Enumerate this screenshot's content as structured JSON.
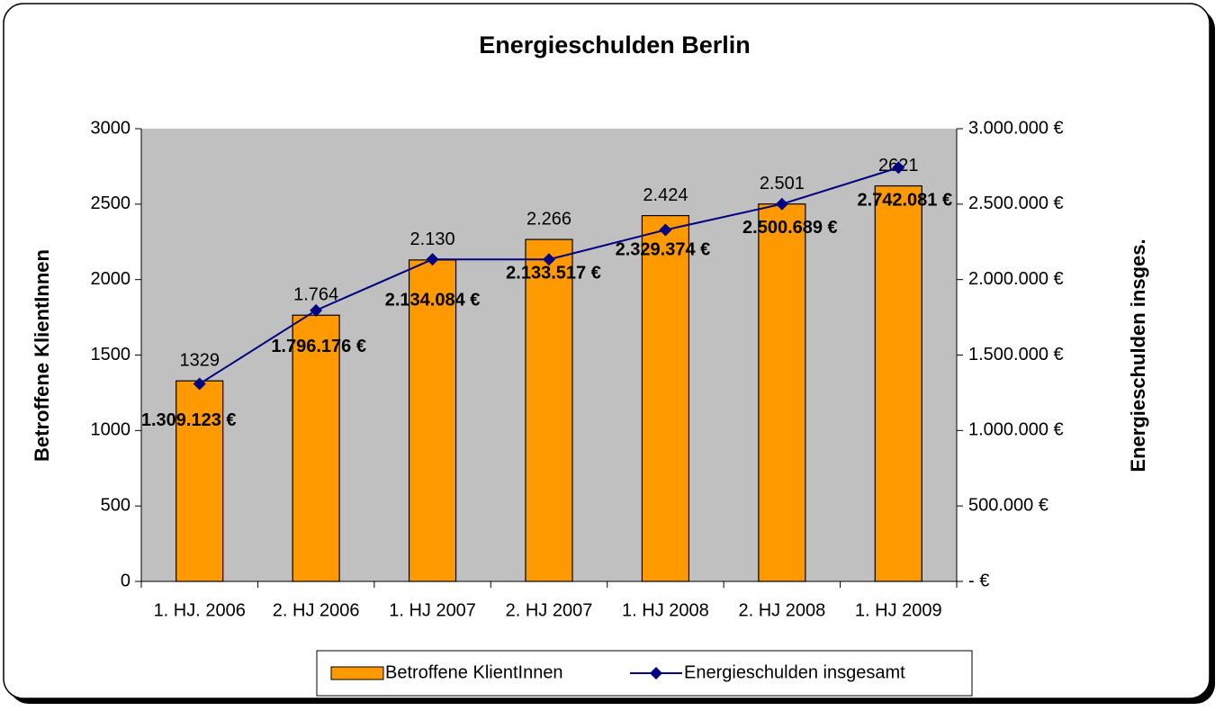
{
  "chart_data": {
    "type": "bar",
    "title": "Energieschulden Berlin",
    "categories": [
      "1. HJ. 2006",
      "2. HJ 2006",
      "1. HJ 2007",
      "2. HJ 2007",
      "1. HJ 2008",
      "2. HJ 2008",
      "1. HJ 2009"
    ],
    "series": [
      {
        "name": "Betroffene KlientInnen",
        "type": "bar",
        "color": "#ff9900",
        "values": [
          1329,
          1764,
          2130,
          2266,
          2424,
          2501,
          2621
        ],
        "value_labels": [
          "1329",
          "1.764",
          "2.130",
          "2.266",
          "2.424",
          "2.501",
          "2621"
        ]
      },
      {
        "name": "Energieschulden insgesamt",
        "type": "line",
        "axis": "y2",
        "color": "#000080",
        "values": [
          1309123,
          1796176,
          2134084,
          2133517,
          2329374,
          2500689,
          2742081
        ],
        "value_labels": [
          "1.309.123 €",
          "1.796.176 €",
          "2.134.084 €",
          "2.133.517 €",
          "2.329.374 €",
          "2.500.689 €",
          "2.742.081 €"
        ]
      }
    ],
    "y_label": "Betroffene KlientInnen",
    "y2_label": "Energieschulden insges.",
    "ylim": [
      0,
      3000
    ],
    "yticks": [
      0,
      500,
      1000,
      1500,
      2000,
      2500,
      3000
    ],
    "y2lim": [
      0,
      3000000
    ],
    "y2ticks": [
      {
        "value": 0,
        "label": "- €"
      },
      {
        "value": 500000,
        "label": "500.000 €"
      },
      {
        "value": 1000000,
        "label": "1.000.000 €"
      },
      {
        "value": 1500000,
        "label": "1.500.000 €"
      },
      {
        "value": 2000000,
        "label": "2.000.000 €"
      },
      {
        "value": 2500000,
        "label": "2.500.000 €"
      },
      {
        "value": 3000000,
        "label": "3.000.000 €"
      }
    ],
    "legend": "bottom"
  }
}
